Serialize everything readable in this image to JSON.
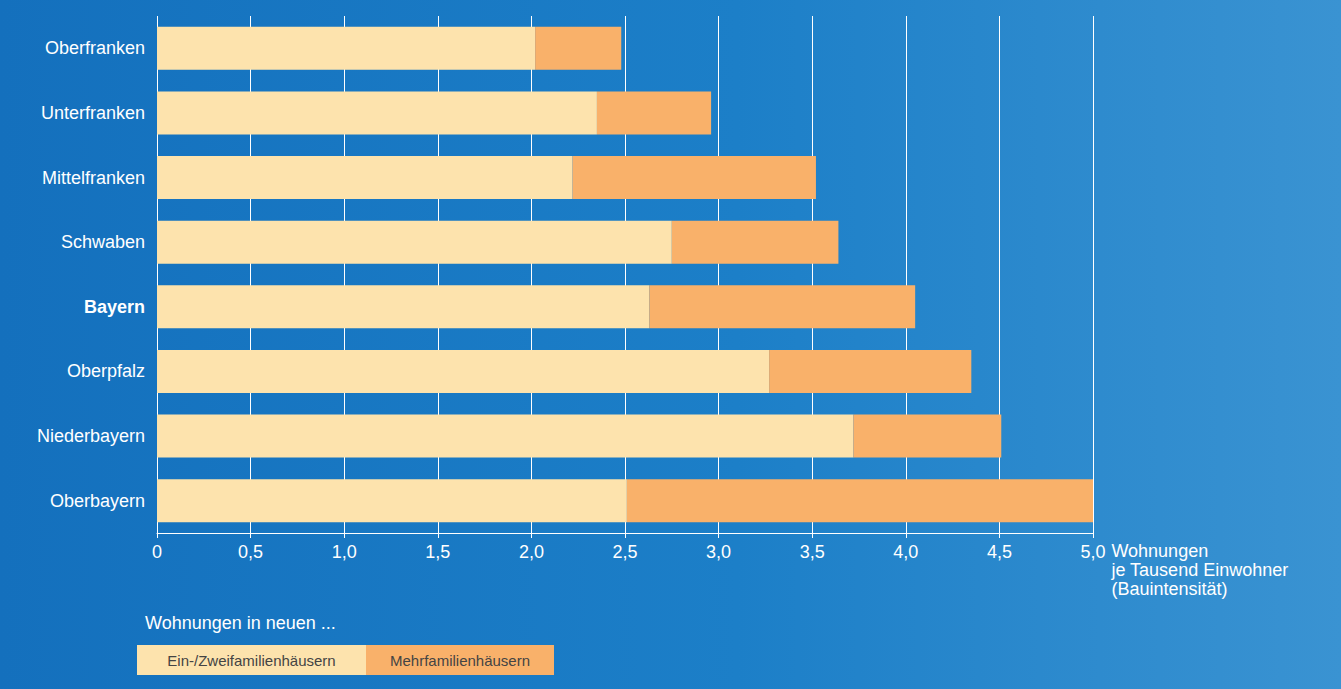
{
  "chart_data": {
    "type": "bar",
    "orientation": "horizontal",
    "stacked": true,
    "grid": true,
    "legend": "bottom left",
    "legend_title": "Wohnungen in neuen ...",
    "x_label": "Wohnungen\nje Tausend Einwohner\n(Bauintensität)",
    "categories": [
      "Oberfranken",
      "Unterfranken",
      "Mittelfranken",
      "Schwaben",
      "Bayern",
      "Oberpfalz",
      "Niederbayern",
      "Oberbayern"
    ],
    "series": [
      {
        "name": "Ein-/Zweifamilienhäusern",
        "color": "#fde3ad",
        "values": [
          2.02,
          2.35,
          2.22,
          2.75,
          2.63,
          3.27,
          3.72,
          2.51
        ]
      },
      {
        "name": "Mehrfamilienhäusern",
        "color": "#f9b16a",
        "values": [
          0.46,
          0.61,
          1.3,
          0.89,
          1.42,
          1.08,
          0.79,
          2.49
        ]
      }
    ],
    "xlim": [
      0,
      5
    ],
    "xticks": [
      0,
      {
        "value": 0.5,
        "label": "0,5"
      },
      {
        "value": 1,
        "label": "1,0"
      },
      {
        "value": 1.5,
        "label": "1,5"
      },
      {
        "value": 2,
        "label": "2,0"
      },
      {
        "value": 2.5,
        "label": "2,5"
      },
      {
        "value": 3,
        "label": "3,0"
      },
      {
        "value": 3.5,
        "label": "3,5"
      },
      {
        "value": 4,
        "label": "4,0"
      },
      {
        "value": 4.5,
        "label": "4,5"
      },
      {
        "value": 5,
        "label": "5,0"
      }
    ]
  }
}
